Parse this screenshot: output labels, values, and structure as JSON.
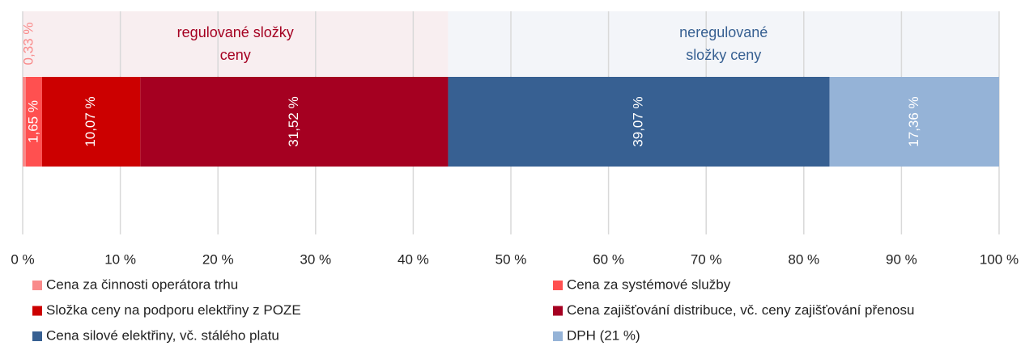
{
  "chart_data": {
    "type": "stacked-bar-horizontal",
    "series": [
      {
        "name": "Cena za činnosti operátora trhu",
        "color": "#f98a8a",
        "values": [
          0.33
        ],
        "value_labels": [
          "0,33 %"
        ]
      },
      {
        "name": "Cena za systémové služby",
        "color": "#ff5050",
        "values": [
          1.65
        ],
        "value_labels": [
          "1,65 %"
        ]
      },
      {
        "name": "Složka ceny na podporu elektřiny z POZE",
        "color": "#cc0000",
        "values": [
          10.07
        ],
        "value_labels": [
          "10,07 %"
        ]
      },
      {
        "name": "Cena zajišťování distribuce, vč. ceny zajišťování přenosu",
        "color": "#a50021",
        "values": [
          31.52
        ],
        "value_labels": [
          "31,52 %"
        ]
      },
      {
        "name": "Cena silové elektřiny, vč. stálého platu",
        "color": "#376092",
        "values": [
          39.07
        ],
        "value_labels": [
          "39,07 %"
        ]
      },
      {
        "name": "DPH (21 %)",
        "color": "#95b3d7",
        "values": [
          17.36
        ],
        "value_labels": [
          "17,36 %"
        ]
      }
    ],
    "annotations": [
      {
        "text": "regulované složky ceny",
        "color": "#a50021",
        "background": "#f8eef0"
      },
      {
        "text": "neregulované složky ceny",
        "color": "#376092",
        "background": "#f3f5f9"
      }
    ],
    "xlim": [
      0,
      100
    ],
    "xticks": [
      {
        "value": 0,
        "label": "0 %"
      },
      {
        "value": 10,
        "label": "10 %"
      },
      {
        "value": 20,
        "label": "20 %"
      },
      {
        "value": 30,
        "label": "30 %"
      },
      {
        "value": 40,
        "label": "40 %"
      },
      {
        "value": 50,
        "label": "50 %"
      },
      {
        "value": 60,
        "label": "60 %"
      },
      {
        "value": 70,
        "label": "70 %"
      },
      {
        "value": 80,
        "label": "80 %"
      },
      {
        "value": 90,
        "label": "90 %"
      },
      {
        "value": 100,
        "label": "100 %"
      }
    ],
    "grid": true
  }
}
